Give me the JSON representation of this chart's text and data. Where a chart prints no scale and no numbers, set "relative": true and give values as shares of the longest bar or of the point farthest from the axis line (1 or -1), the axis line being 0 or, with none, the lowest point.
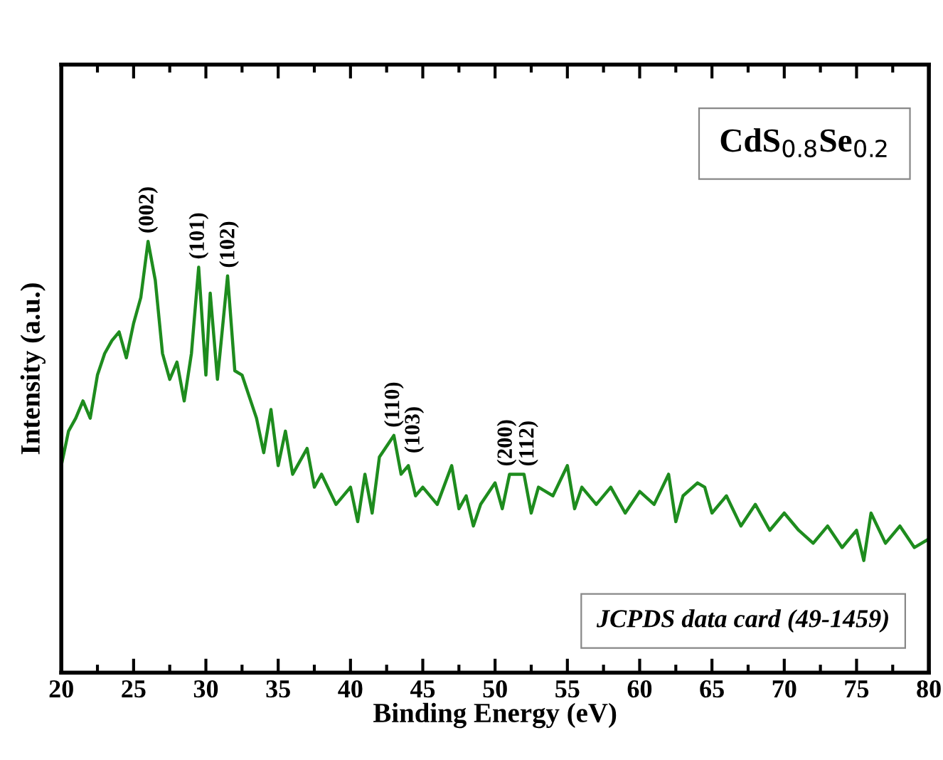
{
  "chart_data": {
    "type": "line",
    "relative": true,
    "xlabel": "Binding Energy (eV)",
    "ylabel": "Intensity (a.u.)",
    "xlim": [
      20,
      80
    ],
    "xticks": [
      20,
      25,
      30,
      35,
      40,
      45,
      50,
      55,
      60,
      65,
      70,
      75,
      80
    ],
    "grid": false,
    "legend": false,
    "marker": "none",
    "line_style": "solid",
    "series": [
      {
        "color": "#1e8c1e",
        "x": [
          20,
          20.5,
          21,
          21.5,
          22,
          22.5,
          23,
          23.5,
          24,
          24.5,
          25,
          25.5,
          26,
          26.5,
          27,
          27.5,
          28,
          28.5,
          29,
          29.5,
          30,
          30.3,
          30.8,
          31.5,
          32,
          32.5,
          33,
          33.5,
          34,
          34.5,
          35,
          35.5,
          36,
          37,
          37.5,
          38,
          39,
          40,
          40.5,
          41,
          41.5,
          42,
          43,
          43.5,
          44,
          44.5,
          45,
          46,
          47,
          47.5,
          48,
          48.5,
          49,
          50,
          50.5,
          51,
          52,
          52.5,
          53,
          54,
          55,
          55.5,
          56,
          57,
          58,
          59,
          60,
          61,
          62,
          62.5,
          63,
          64,
          64.5,
          65,
          66,
          67,
          68,
          69,
          70,
          71,
          72,
          73,
          74,
          75,
          75.5,
          76,
          77,
          78,
          79,
          80
        ],
        "values": [
          0.48,
          0.56,
          0.59,
          0.63,
          0.59,
          0.69,
          0.74,
          0.77,
          0.79,
          0.73,
          0.81,
          0.87,
          1.0,
          0.91,
          0.74,
          0.68,
          0.72,
          0.63,
          0.74,
          0.94,
          0.69,
          0.88,
          0.68,
          0.92,
          0.7,
          0.69,
          0.64,
          0.59,
          0.51,
          0.61,
          0.48,
          0.56,
          0.46,
          0.52,
          0.43,
          0.46,
          0.39,
          0.43,
          0.35,
          0.46,
          0.37,
          0.5,
          0.55,
          0.46,
          0.48,
          0.41,
          0.43,
          0.39,
          0.48,
          0.38,
          0.41,
          0.34,
          0.39,
          0.44,
          0.38,
          0.46,
          0.46,
          0.37,
          0.43,
          0.41,
          0.48,
          0.38,
          0.43,
          0.39,
          0.43,
          0.37,
          0.42,
          0.39,
          0.46,
          0.35,
          0.41,
          0.44,
          0.43,
          0.37,
          0.41,
          0.34,
          0.39,
          0.33,
          0.37,
          0.33,
          0.3,
          0.34,
          0.29,
          0.33,
          0.26,
          0.37,
          0.3,
          0.34,
          0.29,
          0.31
        ]
      }
    ],
    "annotations": [
      "CdS$_{0.8}$Se$_{0.2}$",
      "JCPDS data card (49-1459)",
      {
        "text": "(002)",
        "x": 26,
        "y": 1.0
      },
      {
        "text": "(101)",
        "x": 29.5,
        "y": 0.94
      },
      {
        "text": "(102)",
        "x": 31.6,
        "y": 0.92
      },
      {
        "text": "(110)",
        "x": 43,
        "y": 0.55
      },
      {
        "text": "(103)",
        "x": 44.4,
        "y": 0.49
      },
      {
        "text": "(200)",
        "x": 50.8,
        "y": 0.46
      },
      {
        "text": "(112)",
        "x": 52.3,
        "y": 0.46
      }
    ]
  }
}
